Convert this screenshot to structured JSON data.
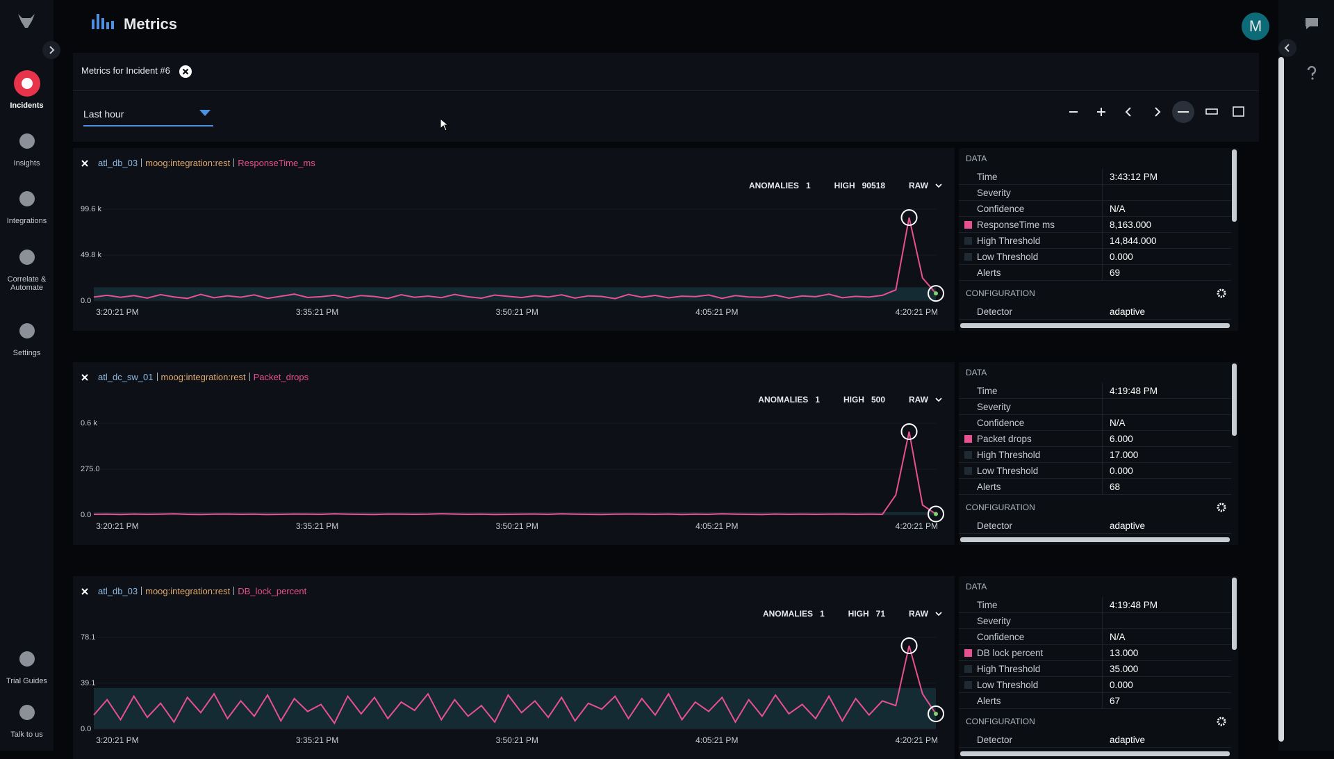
{
  "sidebar": {
    "items": [
      "Incidents",
      "Insights",
      "Integrations",
      "Correlate & Automate",
      "Settings",
      "Trial Guides",
      "Talk to us"
    ]
  },
  "header": {
    "title": "Metrics",
    "avatar": "M"
  },
  "panel": {
    "title": "Metrics for Incident #6",
    "range": "Last hour"
  },
  "metrics": [
    {
      "host": "atl_db_03",
      "source": "moog:integration:rest",
      "metric": "ResponseTime_ms",
      "anomalies_label": "ANOMALIES",
      "anomalies": 1,
      "high_label": "HIGH",
      "high": 90518,
      "mode": "RAW",
      "chart_data": {
        "type": "line",
        "color": "#e8508f",
        "ylim": [
          0,
          99600
        ],
        "yticks": [
          {
            "value": 0,
            "label": "0.0"
          },
          {
            "value": 49800,
            "label": "49.8 k"
          },
          {
            "value": 99600,
            "label": "99.6 k"
          }
        ],
        "xlabels": [
          "3:20:21 PM",
          "3:35:21 PM",
          "3:50:21 PM",
          "4:05:21 PM",
          "4:20:21 PM"
        ],
        "values": [
          4200,
          6100,
          3900,
          5800,
          3100,
          6900,
          4400,
          2800,
          7200,
          3500,
          5600,
          4100,
          6600,
          2900,
          5100,
          7400,
          3800,
          4600,
          6200,
          3300,
          5900,
          4800,
          2700,
          6800,
          4000,
          5300,
          3600,
          7100,
          4500,
          3000,
          6400,
          5000,
          3700,
          5700,
          4300,
          6700,
          3200,
          5500,
          4900,
          2600,
          7000,
          4100,
          6000,
          3400,
          5200,
          4700,
          6500,
          2900,
          5800,
          4400,
          3900,
          6300,
          3100,
          5400,
          4600,
          7300,
          3500,
          5000,
          4200,
          6100,
          12000,
          90518,
          25000,
          8163
        ]
      },
      "table": {
        "data_label": "DATA",
        "rows": [
          {
            "label": "Time",
            "value": "3:43:12 PM"
          },
          {
            "label": "Severity"
          },
          {
            "label": "Confidence",
            "value": "N/A"
          },
          {
            "label": "ResponseTime ms",
            "value": "8,163.000",
            "swatch": "#e8508f"
          },
          {
            "label": "High Threshold",
            "value": "14,844.000",
            "swatch": "#1f2a33"
          },
          {
            "label": "Low Threshold",
            "value": "0.000",
            "swatch": "#1f2a33"
          },
          {
            "label": "Alerts",
            "value": "69"
          }
        ],
        "config_label": "CONFIGURATION",
        "config": [
          {
            "label": "Detector",
            "value": "adaptive"
          }
        ]
      }
    },
    {
      "host": "atl_dc_sw_01",
      "source": "moog:integration:rest",
      "metric": "Packet_drops",
      "anomalies_label": "ANOMALIES",
      "anomalies": 1,
      "high_label": "HIGH",
      "high": 500,
      "mode": "RAW",
      "chart_data": {
        "type": "line",
        "color": "#e8508f",
        "ylim": [
          0,
          550
        ],
        "yticks": [
          {
            "value": 0,
            "label": "0.0"
          },
          {
            "value": 275,
            "label": "275.0"
          },
          {
            "value": 550,
            "label": "0.6 k"
          }
        ],
        "xlabels": [
          "3:20:21 PM",
          "3:35:21 PM",
          "3:50:21 PM",
          "4:05:21 PM",
          "4:20:21 PM"
        ],
        "values": [
          4,
          5,
          3,
          6,
          4,
          5,
          7,
          4,
          3,
          5,
          6,
          4,
          5,
          3,
          4,
          6,
          5,
          4,
          7,
          5,
          4,
          3,
          6,
          5,
          4,
          5,
          8,
          6,
          4,
          5,
          3,
          4,
          5,
          6,
          4,
          7,
          5,
          4,
          3,
          5,
          6,
          5,
          4,
          6,
          3,
          5,
          4,
          7,
          5,
          4,
          3,
          6,
          4,
          5,
          4,
          5,
          6,
          4,
          5,
          4,
          120,
          500,
          60,
          6
        ]
      },
      "table": {
        "data_label": "DATA",
        "rows": [
          {
            "label": "Time",
            "value": "4:19:48 PM"
          },
          {
            "label": "Severity"
          },
          {
            "label": "Confidence",
            "value": "N/A"
          },
          {
            "label": "Packet drops",
            "value": "6.000",
            "swatch": "#e8508f"
          },
          {
            "label": "High Threshold",
            "value": "17.000",
            "swatch": "#1f2a33"
          },
          {
            "label": "Low Threshold",
            "value": "0.000",
            "swatch": "#1f2a33"
          },
          {
            "label": "Alerts",
            "value": "68"
          }
        ],
        "config_label": "CONFIGURATION",
        "config": [
          {
            "label": "Detector",
            "value": "adaptive"
          }
        ]
      }
    },
    {
      "host": "atl_db_03",
      "source": "moog:integration:rest",
      "metric": "DB_lock_percent",
      "anomalies_label": "ANOMALIES",
      "anomalies": 1,
      "high_label": "HIGH",
      "high": 71,
      "mode": "RAW",
      "chart_data": {
        "type": "line",
        "color": "#e8508f",
        "ylim": [
          0,
          78.1
        ],
        "yticks": [
          {
            "value": 0,
            "label": "0.0"
          },
          39.1,
          78.1
        ],
        "xlabels": [
          "3:20:21 PM",
          "3:35:21 PM",
          "3:50:21 PM",
          "4:05:21 PM",
          "4:20:21 PM"
        ],
        "values": [
          12,
          25,
          8,
          28,
          10,
          22,
          6,
          27,
          14,
          30,
          9,
          24,
          11,
          29,
          7,
          26,
          15,
          21,
          5,
          28,
          13,
          27,
          9,
          23,
          16,
          30,
          8,
          25,
          11,
          20,
          6,
          29,
          14,
          24,
          10,
          27,
          7,
          22,
          17,
          28,
          9,
          26,
          12,
          30,
          8,
          23,
          15,
          27,
          6,
          25,
          11,
          29,
          13,
          21,
          9,
          28,
          7,
          26,
          12,
          24,
          20,
          71,
          30,
          13
        ]
      },
      "table": {
        "data_label": "DATA",
        "rows": [
          {
            "label": "Time",
            "value": "4:19:48 PM"
          },
          {
            "label": "Severity"
          },
          {
            "label": "Confidence",
            "value": "N/A"
          },
          {
            "label": "DB lock percent",
            "value": "13.000",
            "swatch": "#e8508f"
          },
          {
            "label": "High Threshold",
            "value": "35.000",
            "swatch": "#1f2a33"
          },
          {
            "label": "Low Threshold",
            "value": "0.000",
            "swatch": "#1f2a33"
          },
          {
            "label": "Alerts",
            "value": "67"
          }
        ],
        "config_label": "CONFIGURATION",
        "config": [
          {
            "label": "Detector",
            "value": "adaptive"
          }
        ]
      }
    }
  ]
}
